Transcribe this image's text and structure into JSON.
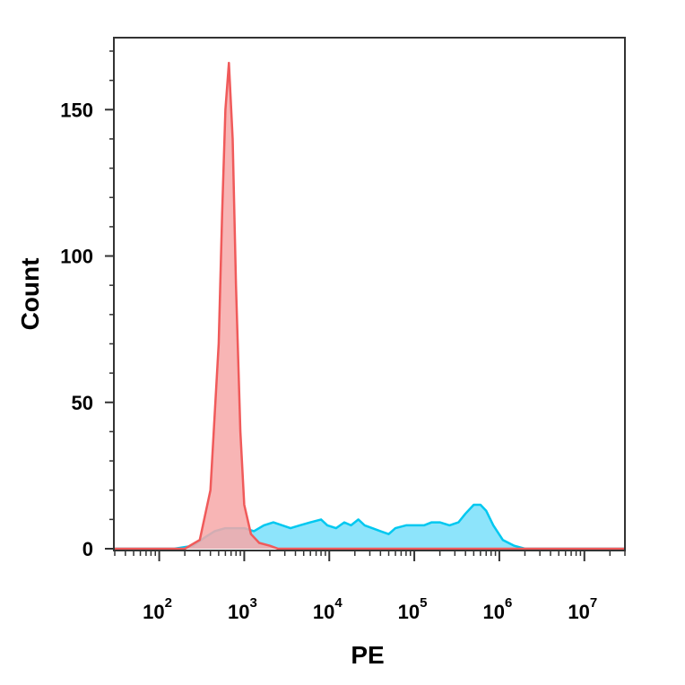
{
  "chart_data": {
    "type": "area",
    "xlabel": "PE",
    "ylabel": "Count",
    "x_scale": "log10",
    "xlim": [
      30,
      30000000
    ],
    "ylim": [
      0,
      170
    ],
    "grid": false,
    "legend": "none",
    "y_ticks": [
      {
        "value": 0,
        "label": "0"
      },
      {
        "value": 50,
        "label": "50"
      },
      {
        "value": 100,
        "label": "100"
      },
      {
        "value": 150,
        "label": "150"
      }
    ],
    "x_ticks": [
      {
        "value": 100,
        "base": "10",
        "exp": "2"
      },
      {
        "value": 1000,
        "base": "10",
        "exp": "3"
      },
      {
        "value": 10000,
        "base": "10",
        "exp": "4"
      },
      {
        "value": 100000,
        "base": "10",
        "exp": "5"
      },
      {
        "value": 1000000,
        "base": "10",
        "exp": "6"
      },
      {
        "value": 10000000,
        "base": "10",
        "exp": "7"
      }
    ],
    "series": [
      {
        "color": "#00c8f0",
        "fill": "#8de4fb",
        "points": [
          [
            30,
            0
          ],
          [
            150,
            0
          ],
          [
            250,
            1
          ],
          [
            350,
            4
          ],
          [
            450,
            6
          ],
          [
            600,
            7
          ],
          [
            800,
            7
          ],
          [
            1000,
            7
          ],
          [
            1300,
            6
          ],
          [
            1700,
            8
          ],
          [
            2200,
            9
          ],
          [
            2800,
            8
          ],
          [
            3500,
            7
          ],
          [
            4500,
            8
          ],
          [
            6000,
            9
          ],
          [
            8000,
            10
          ],
          [
            9500,
            8
          ],
          [
            12000,
            7
          ],
          [
            15000,
            9
          ],
          [
            18000,
            8
          ],
          [
            22000,
            10
          ],
          [
            26000,
            8
          ],
          [
            32000,
            7
          ],
          [
            40000,
            6
          ],
          [
            50000,
            5
          ],
          [
            60000,
            7
          ],
          [
            80000,
            8
          ],
          [
            100000,
            8
          ],
          [
            130000,
            8
          ],
          [
            160000,
            9
          ],
          [
            200000,
            9
          ],
          [
            260000,
            8
          ],
          [
            330000,
            9
          ],
          [
            400000,
            12
          ],
          [
            500000,
            15
          ],
          [
            600000,
            15
          ],
          [
            700000,
            13
          ],
          [
            850000,
            8
          ],
          [
            1100000,
            3
          ],
          [
            1500000,
            1
          ],
          [
            2000000,
            0
          ],
          [
            30000000,
            0
          ]
        ]
      },
      {
        "color": "#f05a5a",
        "fill": "#f7a8a8",
        "points": [
          [
            30,
            0
          ],
          [
            200,
            0
          ],
          [
            300,
            3
          ],
          [
            400,
            20
          ],
          [
            500,
            70
          ],
          [
            550,
            115
          ],
          [
            600,
            150
          ],
          [
            660,
            166
          ],
          [
            730,
            140
          ],
          [
            800,
            90
          ],
          [
            900,
            40
          ],
          [
            1000,
            15
          ],
          [
            1200,
            5
          ],
          [
            1500,
            2
          ],
          [
            2000,
            1
          ],
          [
            2500,
            0
          ],
          [
            30000000,
            0
          ]
        ]
      }
    ]
  }
}
